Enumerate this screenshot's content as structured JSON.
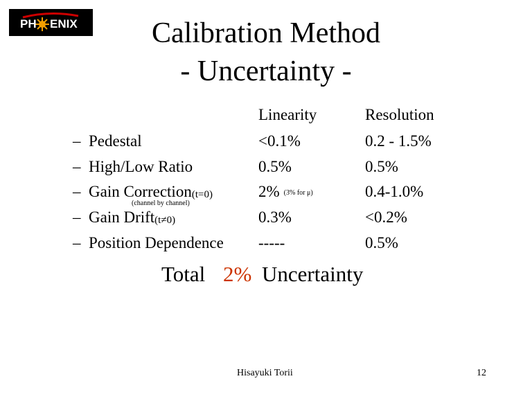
{
  "logo": {
    "left": "PH",
    "right": "ENIX"
  },
  "title": {
    "line1": "Calibration Method",
    "line2": "- Uncertainty -"
  },
  "columns": {
    "linearity": "Linearity",
    "resolution": "Resolution"
  },
  "rows": [
    {
      "bullet": "–",
      "label": "Pedestal",
      "linearity": "<0.1%",
      "resolution": "0.2 - 1.5%"
    },
    {
      "bullet": "–",
      "label": "High/Low Ratio",
      "linearity": "0.5%",
      "resolution": "0.5%"
    },
    {
      "bullet": "–",
      "label": "Gain Correction",
      "subscript": "(t=0)",
      "note": "(channel by channel)",
      "linearity": "2%",
      "linearity_note": "(3% for μ)",
      "resolution": "0.4-1.0%"
    },
    {
      "bullet": "–",
      "label": "Gain Drift",
      "subscript": "(t≠0)",
      "linearity": "0.3%",
      "resolution": "<0.2%"
    },
    {
      "bullet": "–",
      "label": "Position Dependence",
      "linearity": "-----",
      "resolution": "0.5%"
    }
  ],
  "total": {
    "prefix": "Total",
    "value": "2%",
    "suffix": "Uncertainty"
  },
  "footer": {
    "author": "Hisayuki Torii",
    "page": "12"
  }
}
